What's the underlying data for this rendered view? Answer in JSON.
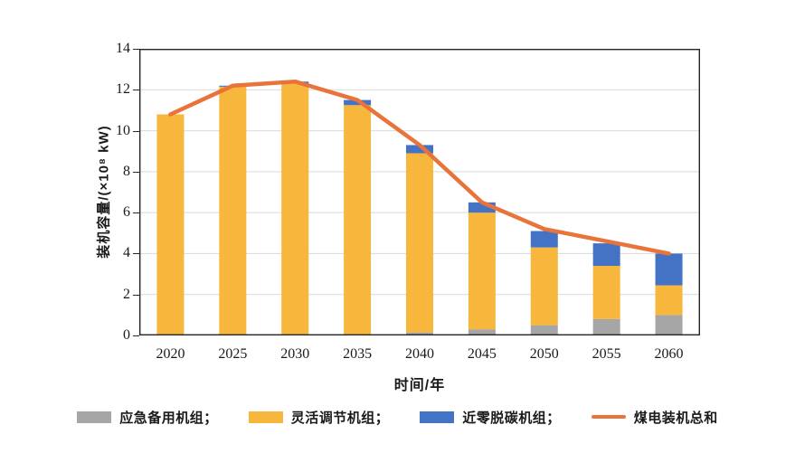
{
  "chart": {
    "y_ticks": [
      0,
      2,
      4,
      6,
      8,
      10,
      12,
      14
    ],
    "gridline_color": "#d9d9d9",
    "axis_color": "#262626",
    "background_color": "#ffffff"
  },
  "chart_data": {
    "type": "bar",
    "subtype": "stacked-bars-with-total-line",
    "categories": [
      "2020",
      "2025",
      "2030",
      "2035",
      "2040",
      "2045",
      "2050",
      "2055",
      "2060"
    ],
    "series": [
      {
        "name": "应急备用机组",
        "type": "bar",
        "color": "#a6a6a6",
        "values": [
          0,
          0,
          0,
          0,
          0.15,
          0.3,
          0.5,
          0.8,
          1.0
        ]
      },
      {
        "name": "灵活调节机组",
        "type": "bar",
        "color": "#f7b63c",
        "values": [
          10.8,
          12.15,
          12.3,
          11.25,
          8.75,
          5.7,
          3.8,
          2.6,
          1.45
        ]
      },
      {
        "name": "近零脱碳机组",
        "type": "bar",
        "color": "#4472c4",
        "values": [
          0,
          0.05,
          0.1,
          0.25,
          0.4,
          0.5,
          0.8,
          1.1,
          1.55
        ]
      },
      {
        "name": "煤电装机总和",
        "type": "line",
        "color": "#e8743b",
        "values": [
          10.8,
          12.2,
          12.4,
          11.5,
          9.3,
          6.5,
          5.2,
          4.6,
          4.0
        ]
      }
    ],
    "title": "",
    "xlabel": "时间/年",
    "ylabel": "装机容量/(×10⁸ kW)",
    "ylim": [
      0,
      14
    ],
    "grid": true,
    "legend_position": "bottom"
  },
  "legend": {
    "items": [
      {
        "label": "应急备用机组；",
        "color": "#a6a6a6",
        "swatch": "box"
      },
      {
        "label": "灵活调节机组；",
        "color": "#f7b63c",
        "swatch": "box"
      },
      {
        "label": "近零脱碳机组；",
        "color": "#4472c4",
        "swatch": "box"
      },
      {
        "label": "煤电装机总和",
        "color": "#e8743b",
        "swatch": "line"
      }
    ]
  }
}
